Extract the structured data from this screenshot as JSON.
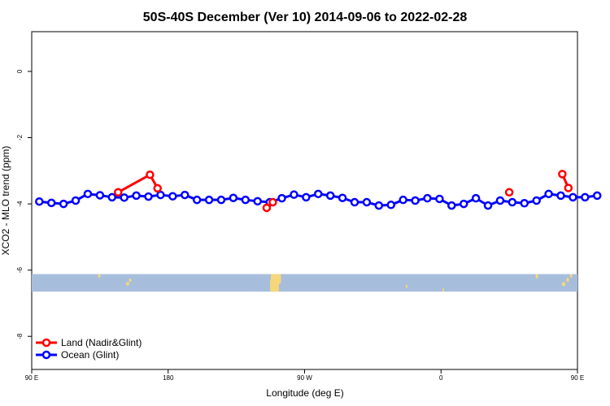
{
  "chart_data": {
    "type": "line",
    "title": "50S-40S December (Ver 10)   2014-09-06 to 2022-02-28",
    "xlabel": "Longitude (deg E)",
    "ylabel": "XCO2 - MLO trend (ppm)",
    "xlim": [
      90,
      450
    ],
    "ylim": [
      -9,
      1.2
    ],
    "x_ticks": [
      {
        "value": 90,
        "label": "90 E"
      },
      {
        "value": 180,
        "label": "180"
      },
      {
        "value": 270,
        "label": "90 W"
      },
      {
        "value": 360,
        "label": "0"
      },
      {
        "value": 450,
        "label": "90 E"
      }
    ],
    "y_ticks": [
      {
        "value": 0,
        "label": "0"
      },
      {
        "value": -2,
        "label": "-2"
      },
      {
        "value": -4,
        "label": "-4"
      },
      {
        "value": -6,
        "label": "-6"
      },
      {
        "value": -8,
        "label": "-8"
      }
    ],
    "grid": false,
    "legend_position": "bottom-left",
    "map_strip": {
      "y_top": -6.12,
      "y_bottom": -6.65,
      "ocean_color": "#a7bddc",
      "land_color": "#f5d77a"
    },
    "series": [
      {
        "name": "Land (Nadir&Glint)",
        "color": "#ff0000",
        "segments": [
          [
            [
              147,
              -3.65
            ],
            [
              168,
              -3.12
            ],
            [
              173,
              -3.53
            ]
          ],
          [
            [
              245,
              -4.12
            ],
            [
              249,
              -3.95
            ]
          ],
          [
            [
              405,
              -3.65
            ]
          ],
          [
            [
              440,
              -3.1
            ],
            [
              444,
              -3.52
            ]
          ]
        ]
      },
      {
        "name": "Ocean (Glint)",
        "color": "#0000ff",
        "segments": [
          [
            [
              95,
              -3.93
            ],
            [
              103,
              -3.97
            ],
            [
              111,
              -4.0
            ],
            [
              119,
              -3.9
            ],
            [
              127,
              -3.7
            ],
            [
              135,
              -3.74
            ],
            [
              143,
              -3.8
            ],
            [
              151,
              -3.81
            ],
            [
              159,
              -3.75
            ],
            [
              167,
              -3.78
            ],
            [
              175,
              -3.73
            ],
            [
              183,
              -3.77
            ],
            [
              191,
              -3.73
            ],
            [
              199,
              -3.88
            ],
            [
              207,
              -3.88
            ],
            [
              215,
              -3.88
            ],
            [
              223,
              -3.82
            ],
            [
              231,
              -3.88
            ],
            [
              239,
              -3.92
            ],
            [
              247,
              -3.95
            ],
            [
              255,
              -3.83
            ],
            [
              263,
              -3.72
            ],
            [
              271,
              -3.8
            ],
            [
              279,
              -3.7
            ],
            [
              287,
              -3.75
            ],
            [
              295,
              -3.82
            ],
            [
              303,
              -3.95
            ],
            [
              311,
              -3.95
            ],
            [
              319,
              -4.05
            ],
            [
              327,
              -4.03
            ],
            [
              335,
              -3.88
            ],
            [
              343,
              -3.9
            ],
            [
              351,
              -3.83
            ],
            [
              359,
              -3.85
            ],
            [
              367,
              -4.05
            ],
            [
              375,
              -4.0
            ],
            [
              383,
              -3.83
            ],
            [
              391,
              -4.05
            ],
            [
              399,
              -3.9
            ],
            [
              407,
              -3.95
            ],
            [
              415,
              -3.98
            ],
            [
              423,
              -3.9
            ],
            [
              431,
              -3.7
            ],
            [
              439,
              -3.75
            ],
            [
              447,
              -3.8
            ],
            [
              455,
              -3.8
            ],
            [
              463,
              -3.75
            ]
          ]
        ]
      }
    ]
  }
}
